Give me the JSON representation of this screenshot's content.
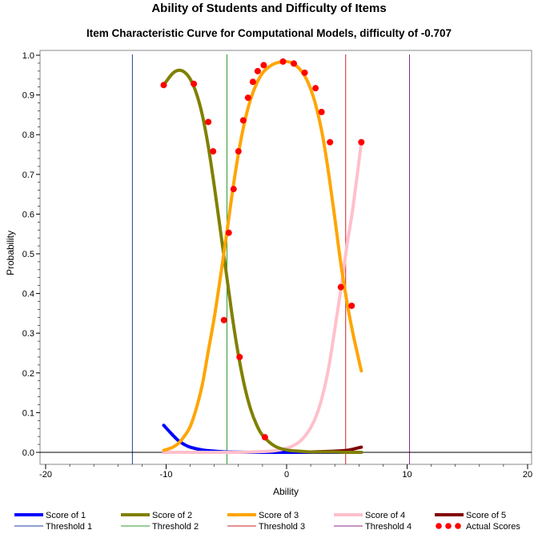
{
  "chart_data": {
    "type": "line",
    "title": "Ability of Students and Difficulty of Items",
    "subtitle": "Item Characteristic Curve for Computational Models, difficulty of -0.707",
    "xlabel": "Ability",
    "ylabel": "Probability",
    "xlim": [
      -20,
      20
    ],
    "ylim": [
      0,
      1
    ],
    "x_ticks": [
      "-20",
      "-10",
      "0",
      "10",
      "20"
    ],
    "y_ticks": [
      "0.0",
      "0.1",
      "0.2",
      "0.3",
      "0.4",
      "0.5",
      "0.6",
      "0.7",
      "0.8",
      "0.9",
      "1.0"
    ],
    "reference_line_y": 0,
    "series": [
      {
        "name": "Score of 1",
        "color": "#0000ff",
        "x": [
          -10.2,
          -9.5,
          -9,
          -8.5,
          -8,
          -7,
          -6,
          -5,
          -4,
          -3,
          -2,
          -1,
          0,
          1,
          2,
          3,
          4,
          5,
          6.2
        ],
        "y": [
          0.068,
          0.045,
          0.03,
          0.02,
          0.013,
          0.006,
          0.003,
          0.001,
          0.0005,
          0,
          0,
          0,
          0,
          0,
          0,
          0,
          0,
          0,
          0
        ]
      },
      {
        "name": "Score of 2",
        "color": "#808000",
        "x": [
          -10.2,
          -9.5,
          -9,
          -8.5,
          -8,
          -7.5,
          -7,
          -6.5,
          -6,
          -5.5,
          -5,
          -4.5,
          -4,
          -3.5,
          -3,
          -2.5,
          -2,
          -1,
          0,
          1,
          2,
          3,
          4,
          5,
          6.2
        ],
        "y": [
          0.925,
          0.953,
          0.962,
          0.958,
          0.94,
          0.905,
          0.85,
          0.77,
          0.67,
          0.56,
          0.45,
          0.34,
          0.245,
          0.168,
          0.11,
          0.07,
          0.043,
          0.016,
          0.006,
          0.003,
          0.001,
          0.001,
          0.001,
          0,
          0
        ]
      },
      {
        "name": "Score of 3",
        "color": "#ffa500",
        "x": [
          -10.2,
          -9.5,
          -9,
          -8.5,
          -8,
          -7.5,
          -7,
          -6.5,
          -6,
          -5.5,
          -5,
          -4.5,
          -4,
          -3.5,
          -3,
          -2.5,
          -2,
          -1.5,
          -1,
          -0.5,
          0,
          0.5,
          1,
          1.5,
          2,
          2.5,
          3,
          3.5,
          4,
          4.5,
          5,
          5.5,
          6.2
        ],
        "y": [
          0.005,
          0.012,
          0.022,
          0.04,
          0.065,
          0.11,
          0.17,
          0.255,
          0.34,
          0.44,
          0.545,
          0.655,
          0.752,
          0.83,
          0.888,
          0.928,
          0.955,
          0.97,
          0.979,
          0.983,
          0.984,
          0.98,
          0.968,
          0.948,
          0.915,
          0.865,
          0.795,
          0.7,
          0.59,
          0.475,
          0.38,
          0.3,
          0.205
        ]
      },
      {
        "name": "Score of 4",
        "color": "#ffc0cb",
        "x": [
          -10.2,
          -6,
          -4,
          -2,
          -1,
          0,
          0.5,
          1,
          1.5,
          2,
          2.5,
          3,
          3.5,
          4,
          4.5,
          5,
          5.5,
          6.2
        ],
        "y": [
          0,
          0,
          0,
          0.002,
          0.004,
          0.01,
          0.016,
          0.025,
          0.04,
          0.062,
          0.095,
          0.145,
          0.215,
          0.31,
          0.41,
          0.52,
          0.615,
          0.78
        ]
      },
      {
        "name": "Score of 5",
        "color": "#800000",
        "x": [
          -10.2,
          -6,
          -3,
          0,
          2,
          3,
          4,
          5,
          5.5,
          6.2
        ],
        "y": [
          0,
          0,
          0,
          0,
          0.001,
          0.002,
          0.003,
          0.005,
          0.008,
          0.013
        ]
      }
    ],
    "thresholds": [
      {
        "name": "Threshold 1",
        "x": -12.8,
        "color": "#1f3f9f"
      },
      {
        "name": "Threshold 2",
        "x": -4.95,
        "color": "#339933"
      },
      {
        "name": "Threshold 3",
        "x": 4.9,
        "color": "#cc2222"
      },
      {
        "name": "Threshold 4",
        "x": 10.2,
        "color": "#8e2a8e"
      }
    ],
    "actual_scores": {
      "name": "Actual Scores",
      "color": "#ff0000",
      "points": [
        [
          -10.2,
          0.925
        ],
        [
          -7.7,
          0.928
        ],
        [
          -6.5,
          0.832
        ],
        [
          -6.1,
          0.758
        ],
        [
          -5.2,
          0.333
        ],
        [
          -4.8,
          0.553
        ],
        [
          -4.4,
          0.663
        ],
        [
          -4.0,
          0.758
        ],
        [
          -3.9,
          0.24
        ],
        [
          -3.6,
          0.836
        ],
        [
          -3.2,
          0.893
        ],
        [
          -2.8,
          0.933
        ],
        [
          -2.4,
          0.96
        ],
        [
          -1.9,
          0.975
        ],
        [
          -1.8,
          0.038
        ],
        [
          -0.3,
          0.984
        ],
        [
          0.6,
          0.979
        ],
        [
          1.5,
          0.956
        ],
        [
          2.4,
          0.917
        ],
        [
          2.9,
          0.857
        ],
        [
          3.6,
          0.781
        ],
        [
          4.5,
          0.416
        ],
        [
          5.4,
          0.369
        ],
        [
          6.2,
          0.781
        ]
      ]
    }
  }
}
